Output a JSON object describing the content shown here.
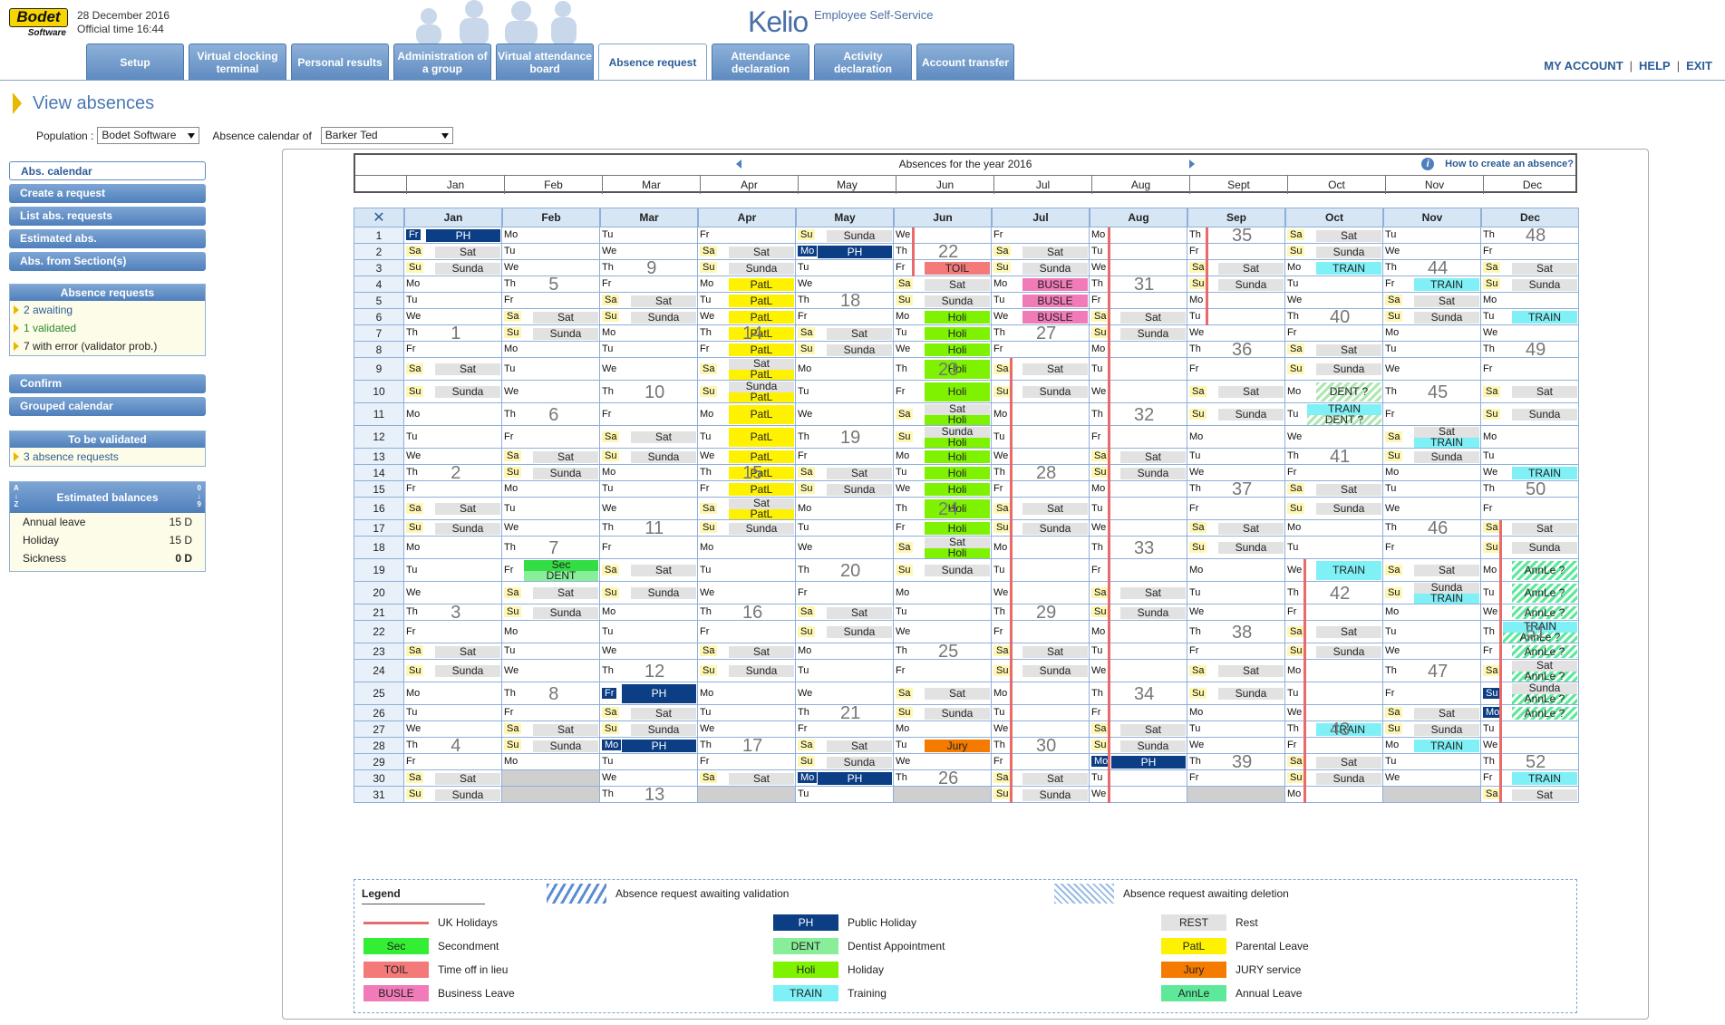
{
  "header": {
    "logo_text": "Bodet",
    "logo_sub": "Software",
    "date": "28 December 2016",
    "official_time": "Official time 16:44",
    "brand": "Kelio",
    "subtitle": "Employee Self-Service",
    "tabs": [
      {
        "label": "Setup",
        "x": 0,
        "w": 108
      },
      {
        "label": "Virtual clocking terminal",
        "x": 113,
        "w": 108
      },
      {
        "label": "Personal results",
        "x": 226,
        "w": 108
      },
      {
        "label": "Administration of a group",
        "x": 339,
        "w": 108
      },
      {
        "label": "Virtual attendance board",
        "x": 452,
        "w": 108
      },
      {
        "label": "Absence request",
        "x": 565,
        "w": 120,
        "active": true
      },
      {
        "label": "Attendance declaration",
        "x": 690,
        "w": 108
      },
      {
        "label": "Activity declaration",
        "x": 803,
        "w": 108
      },
      {
        "label": "Account transfer",
        "x": 916,
        "w": 108
      }
    ],
    "account_links": [
      "MY ACCOUNT",
      "HELP",
      "EXIT"
    ]
  },
  "page": {
    "title": "View absences",
    "population_label": "Population :",
    "population_value": "Bodet Software",
    "calendar_of_label": "Absence calendar of",
    "calendar_of_value": "Barker Ted"
  },
  "leftnav": {
    "buttons": [
      "Abs. calendar",
      "Create a request",
      "List abs. requests",
      "Estimated abs.",
      "Abs. from Section(s)"
    ],
    "absence_requests": {
      "title": "Absence requests",
      "items": [
        "2 awaiting",
        "1 validated",
        "7 with error (validator prob.)"
      ]
    },
    "buttons2": [
      "Confirm",
      "Grouped calendar"
    ],
    "to_validate": {
      "title": "To be validated",
      "items": [
        "3 absence requests"
      ]
    },
    "balances": {
      "title": "Estimated balances",
      "rows": [
        {
          "label": "Annual leave",
          "value": "15 D"
        },
        {
          "label": "Holiday",
          "value": "15 D"
        },
        {
          "label": "Sickness",
          "value": "0 D"
        }
      ]
    }
  },
  "year_header": {
    "title": "Absences for the year 2016",
    "help": "How to create an absence?",
    "months": [
      "Jan",
      "Feb",
      "Mar",
      "Apr",
      "May",
      "Jun",
      "Jul",
      "Aug",
      "Sept",
      "Oct",
      "Nov",
      "Dec"
    ]
  },
  "calendar": {
    "year": 2016,
    "months": [
      "Jan",
      "Feb",
      "Mar",
      "Apr",
      "May",
      "Jun",
      "Jul",
      "Aug",
      "Sep",
      "Oct",
      "Nov",
      "Dec"
    ],
    "day_abbr": [
      "Su",
      "Mo",
      "Tu",
      "We",
      "Th",
      "Fr",
      "Sa"
    ],
    "rest_labels": {
      "Sa": "Sat",
      "Su": "Sunda"
    },
    "events": [
      {
        "m": 0,
        "d": 1,
        "label": "PH",
        "color": "#0b3e84",
        "text": "#ffffff"
      },
      {
        "m": 2,
        "d": 25,
        "label": "PH",
        "color": "#0b3e84",
        "text": "#ffffff"
      },
      {
        "m": 2,
        "d": 28,
        "label": "PH",
        "color": "#0b3e84",
        "text": "#ffffff"
      },
      {
        "m": 4,
        "d": 2,
        "label": "PH",
        "color": "#0b3e84",
        "text": "#ffffff"
      },
      {
        "m": 4,
        "d": 30,
        "label": "PH",
        "color": "#0b3e84",
        "text": "#ffffff"
      },
      {
        "m": 7,
        "d": 29,
        "label": "PH",
        "color": "#0b3e84",
        "text": "#ffffff"
      },
      {
        "m": 1,
        "d": 19,
        "label": "Sec",
        "label2": "DENT",
        "color": "#33dd44",
        "color2": "#88ee99"
      },
      {
        "m": 3,
        "d": 4,
        "label": "PatL",
        "color": "#fff200"
      },
      {
        "m": 3,
        "d": 5,
        "label": "PatL",
        "color": "#fff200"
      },
      {
        "m": 3,
        "d": 6,
        "label": "PatL",
        "color": "#fff200"
      },
      {
        "m": 3,
        "d": 7,
        "label": "PatL",
        "color": "#fff200"
      },
      {
        "m": 3,
        "d": 8,
        "label": "PatL",
        "color": "#fff200"
      },
      {
        "m": 3,
        "d": 9,
        "label": "PatL",
        "rest": true,
        "color": "#fff200"
      },
      {
        "m": 3,
        "d": 10,
        "label": "PatL",
        "rest": true,
        "color": "#fff200"
      },
      {
        "m": 3,
        "d": 11,
        "label": "PatL",
        "color": "#fff200"
      },
      {
        "m": 3,
        "d": 12,
        "label": "PatL",
        "color": "#fff200"
      },
      {
        "m": 3,
        "d": 13,
        "label": "PatL",
        "color": "#fff200"
      },
      {
        "m": 3,
        "d": 14,
        "label": "PatL",
        "color": "#fff200"
      },
      {
        "m": 3,
        "d": 15,
        "label": "PatL",
        "color": "#fff200"
      },
      {
        "m": 3,
        "d": 16,
        "label": "PatL",
        "rest": true,
        "color": "#fff200"
      },
      {
        "m": 5,
        "d": 3,
        "label": "TOIL",
        "color": "#f47a7a"
      },
      {
        "m": 5,
        "d": 6,
        "label": "Holi",
        "color": "#7ef200"
      },
      {
        "m": 5,
        "d": 7,
        "label": "Holi",
        "color": "#7ef200"
      },
      {
        "m": 5,
        "d": 8,
        "label": "Holi",
        "color": "#7ef200"
      },
      {
        "m": 5,
        "d": 9,
        "label": "Holi",
        "color": "#7ef200"
      },
      {
        "m": 5,
        "d": 10,
        "label": "Holi",
        "color": "#7ef200"
      },
      {
        "m": 5,
        "d": 11,
        "label": "Holi",
        "rest": true,
        "color": "#7ef200"
      },
      {
        "m": 5,
        "d": 12,
        "label": "Holi",
        "rest": true,
        "color": "#7ef200"
      },
      {
        "m": 5,
        "d": 13,
        "label": "Holi",
        "color": "#7ef200"
      },
      {
        "m": 5,
        "d": 14,
        "label": "Holi",
        "color": "#7ef200"
      },
      {
        "m": 5,
        "d": 15,
        "label": "Holi",
        "color": "#7ef200"
      },
      {
        "m": 5,
        "d": 16,
        "label": "Holi",
        "color": "#7ef200"
      },
      {
        "m": 5,
        "d": 17,
        "label": "Holi",
        "color": "#7ef200"
      },
      {
        "m": 5,
        "d": 18,
        "label": "Holi",
        "rest": true,
        "color": "#7ef200"
      },
      {
        "m": 5,
        "d": 28,
        "label": "Jury",
        "color": "#f47a00"
      },
      {
        "m": 6,
        "d": 4,
        "label": "BUSLE",
        "color": "#f07bb8"
      },
      {
        "m": 6,
        "d": 5,
        "label": "BUSLE",
        "color": "#f07bb8"
      },
      {
        "m": 6,
        "d": 6,
        "label": "BUSLE",
        "color": "#f07bb8"
      },
      {
        "m": 9,
        "d": 3,
        "label": "TRAIN",
        "color": "#7ff0f6"
      },
      {
        "m": 9,
        "d": 10,
        "label": "DENT ?",
        "color": "#aee8b0",
        "hatch": true
      },
      {
        "m": 9,
        "d": 11,
        "label": "TRAIN",
        "label2": "DENT ?",
        "color": "#7ff0f6",
        "color2": "#aee8b0",
        "hatch2": true
      },
      {
        "m": 9,
        "d": 19,
        "label": "TRAIN",
        "color": "#7ff0f6"
      },
      {
        "m": 9,
        "d": 27,
        "label": "TRAIN",
        "color": "#7ff0f6"
      },
      {
        "m": 10,
        "d": 4,
        "label": "TRAIN",
        "color": "#7ff0f6"
      },
      {
        "m": 10,
        "d": 12,
        "label": "TRAIN",
        "rest": true,
        "color": "#7ff0f6"
      },
      {
        "m": 10,
        "d": 20,
        "label": "TRAIN",
        "rest": true,
        "color": "#7ff0f6"
      },
      {
        "m": 10,
        "d": 28,
        "label": "TRAIN",
        "color": "#7ff0f6"
      },
      {
        "m": 11,
        "d": 6,
        "label": "TRAIN",
        "color": "#7ff0f6"
      },
      {
        "m": 11,
        "d": 14,
        "label": "TRAIN",
        "color": "#7ff0f6"
      },
      {
        "m": 11,
        "d": 30,
        "label": "TRAIN",
        "color": "#7ff0f6"
      },
      {
        "m": 11,
        "d": 19,
        "label": "AnnLe ?",
        "color": "#5ee89a",
        "hatch": true
      },
      {
        "m": 11,
        "d": 20,
        "label": "AnnLe ?",
        "color": "#5ee89a",
        "hatch": true
      },
      {
        "m": 11,
        "d": 21,
        "label": "AnnLe ?",
        "color": "#5ee89a",
        "hatch": true
      },
      {
        "m": 11,
        "d": 22,
        "label": "TRAIN",
        "label2": "AnnLe ?",
        "color": "#7ff0f6",
        "color2": "#5ee89a",
        "hatch2": true
      },
      {
        "m": 11,
        "d": 23,
        "label": "AnnLe ?",
        "color": "#5ee89a",
        "hatch": true
      },
      {
        "m": 11,
        "d": 24,
        "label": "AnnLe ?",
        "rest": true,
        "color": "#5ee89a",
        "hatch": true
      },
      {
        "m": 11,
        "d": 25,
        "label": "AnnLe ?",
        "rest": true,
        "color": "#5ee89a",
        "hatch": true
      },
      {
        "m": 11,
        "d": 26,
        "label": "AnnLe ?",
        "color": "#5ee89a",
        "hatch": true
      }
    ],
    "special_daybox": [
      {
        "m": 11,
        "d": 25,
        "color": "#0b3e84"
      },
      {
        "m": 11,
        "d": 26,
        "color": "#0b3e84"
      }
    ],
    "uk_holidays": [
      {
        "m": 4,
        "d": 30
      },
      {
        "m": 7,
        "d": 29
      },
      {
        "m": 2,
        "d": 25
      },
      {
        "m": 2,
        "d": 28
      },
      {
        "m": 4,
        "d": 2
      },
      {
        "m": 0,
        "d": 1
      },
      {
        "m": 11,
        "d": 26
      },
      {
        "m": 11,
        "d": 27
      }
    ]
  },
  "legend": {
    "title": "Legend",
    "awaiting_validation": "Absence request awaiting validation",
    "awaiting_deletion": "Absence request awaiting deletion",
    "items": [
      {
        "code": "",
        "name": "UK Holidays",
        "color": "ukh",
        "col": 0,
        "row": 0
      },
      {
        "code": "Sec",
        "name": "Secondment",
        "color": "#33ee33",
        "col": 0,
        "row": 1
      },
      {
        "code": "TOIL",
        "name": "Time off in lieu",
        "color": "#f47a7a",
        "col": 0,
        "row": 2
      },
      {
        "code": "BUSLE",
        "name": "Business Leave",
        "color": "#f07bb8",
        "col": 0,
        "row": 3
      },
      {
        "code": "PH",
        "name": "Public Holiday",
        "color": "#0b3e84",
        "text": "#ffffff",
        "col": 1,
        "row": 0
      },
      {
        "code": "DENT",
        "name": "Dentist Appointment",
        "color": "#88ee99",
        "col": 1,
        "row": 1
      },
      {
        "code": "Holi",
        "name": "Holiday",
        "color": "#7ef200",
        "col": 1,
        "row": 2
      },
      {
        "code": "TRAIN",
        "name": "Training",
        "color": "#7ff0f6",
        "col": 1,
        "row": 3
      },
      {
        "code": "REST",
        "name": "Rest",
        "color": "#e2e2e2",
        "col": 2,
        "row": 0
      },
      {
        "code": "PatL",
        "name": "Parental Leave",
        "color": "#fff200",
        "col": 2,
        "row": 1
      },
      {
        "code": "Jury",
        "name": "JURY service",
        "color": "#f47a00",
        "col": 2,
        "row": 2
      },
      {
        "code": "AnnLe",
        "name": "Annual Leave",
        "color": "#5ee89a",
        "col": 2,
        "row": 3
      }
    ]
  }
}
